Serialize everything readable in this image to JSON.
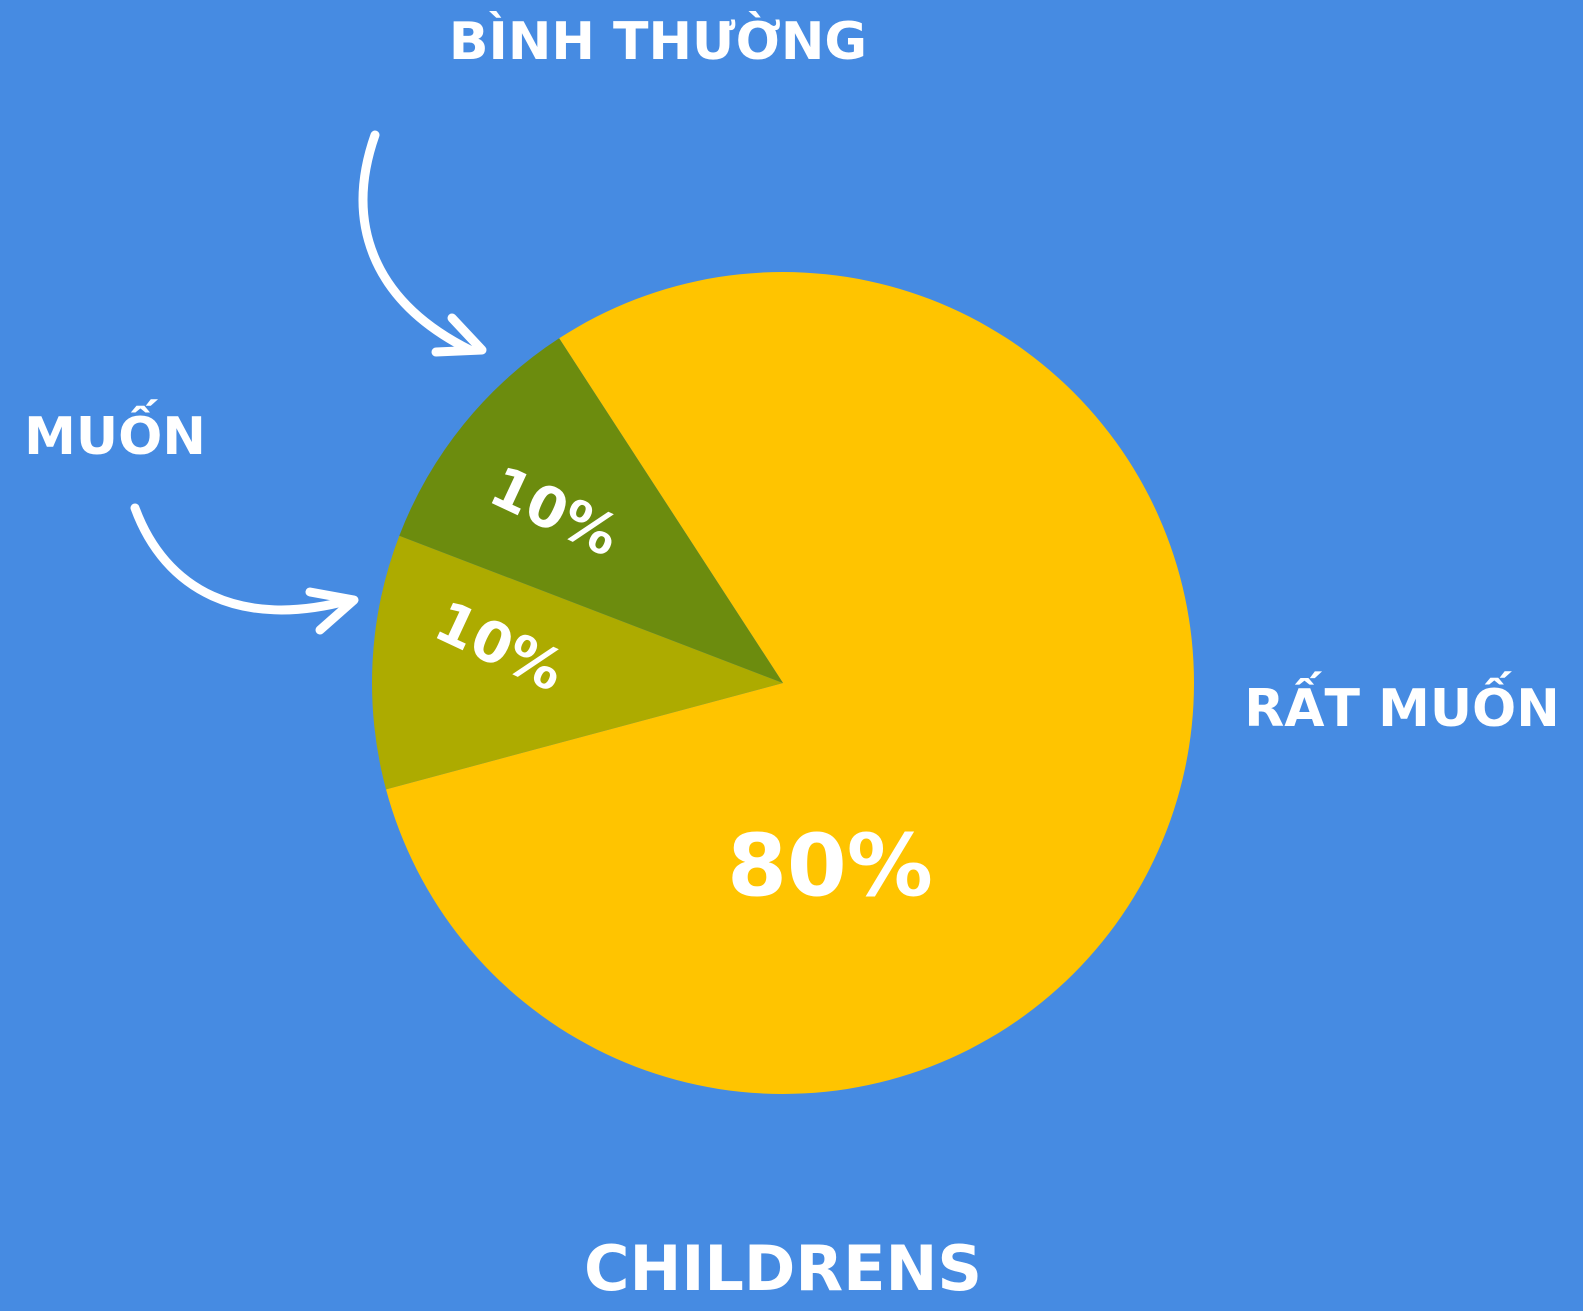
{
  "chart_data": {
    "type": "pie",
    "title": "CHILDRENS",
    "categories": [
      "RẤT MUỐN",
      "MUỐN",
      "BÌNH THƯỜNG"
    ],
    "values": [
      80,
      10,
      10
    ],
    "value_labels": [
      "80%",
      "10%",
      "10%"
    ],
    "colors": [
      "#ffc400",
      "#adab00",
      "#6c8c0e"
    ]
  }
}
